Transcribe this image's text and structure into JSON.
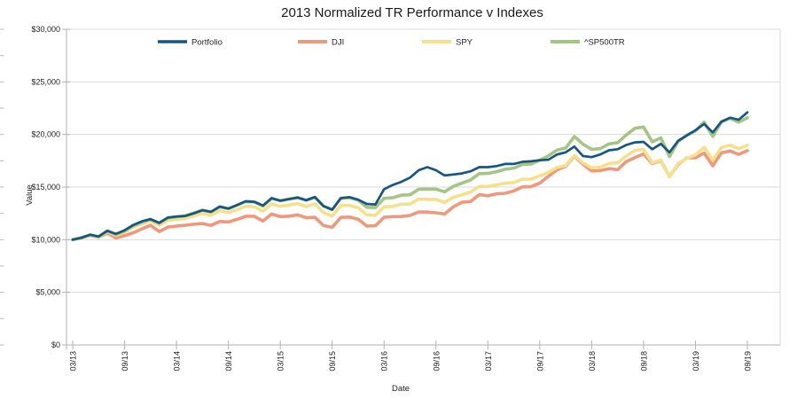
{
  "chart_data": {
    "type": "line",
    "title": "2013 Normalized TR Performance v Indexes",
    "xlabel": "Date",
    "ylabel": "Value",
    "ylim": [
      0,
      30000
    ],
    "grid": "horizontal-major",
    "legend_position": "top-inside-horizontal",
    "y_tick_values": [
      0,
      5000,
      10000,
      15000,
      20000,
      25000,
      30000
    ],
    "y_tick_labels": [
      "$0",
      "$5,000",
      "$10,000",
      "$15,000",
      "$20,000",
      "$25,000",
      "$30,000"
    ],
    "x_tick_labels": [
      "03/13",
      "09/13",
      "03/14",
      "09/14",
      "03/15",
      "09/15",
      "03/16",
      "09/16",
      "03/17",
      "09/17",
      "03/18",
      "09/18",
      "03/19",
      "09/19"
    ],
    "x_tick_month_indices": [
      0,
      6,
      12,
      18,
      24,
      30,
      36,
      42,
      48,
      54,
      60,
      66,
      72,
      78
    ],
    "x_months": [
      "03/13",
      "04/13",
      "05/13",
      "06/13",
      "07/13",
      "08/13",
      "09/13",
      "10/13",
      "11/13",
      "12/13",
      "01/14",
      "02/14",
      "03/14",
      "04/14",
      "05/14",
      "06/14",
      "07/14",
      "08/14",
      "09/14",
      "10/14",
      "11/14",
      "12/14",
      "01/15",
      "02/15",
      "03/15",
      "04/15",
      "05/15",
      "06/15",
      "07/15",
      "08/15",
      "09/15",
      "10/15",
      "11/15",
      "12/15",
      "01/16",
      "02/16",
      "03/16",
      "04/16",
      "05/16",
      "06/16",
      "07/16",
      "08/16",
      "09/16",
      "10/16",
      "11/16",
      "12/16",
      "01/17",
      "02/17",
      "03/17",
      "04/17",
      "05/17",
      "06/17",
      "07/17",
      "08/17",
      "09/17",
      "10/17",
      "11/17",
      "12/17",
      "01/18",
      "02/18",
      "03/18",
      "04/18",
      "05/18",
      "06/18",
      "07/18",
      "08/18",
      "09/18",
      "10/18",
      "11/18",
      "12/18",
      "01/19",
      "02/19",
      "03/19",
      "04/19",
      "05/19",
      "06/19",
      "07/19",
      "08/19",
      "09/19"
    ],
    "series": [
      {
        "name": "Portfolio",
        "color": "#175682",
        "values": [
          10000,
          10180,
          10480,
          10300,
          10850,
          10550,
          10900,
          11400,
          11750,
          11950,
          11600,
          12100,
          12200,
          12250,
          12500,
          12800,
          12650,
          13150,
          12950,
          13300,
          13650,
          13600,
          13250,
          13950,
          13700,
          13850,
          14000,
          13750,
          14050,
          13200,
          12850,
          13950,
          14050,
          13800,
          13400,
          13350,
          14800,
          15200,
          15500,
          15900,
          16600,
          16900,
          16600,
          16100,
          16200,
          16300,
          16500,
          16900,
          16900,
          17000,
          17200,
          17200,
          17400,
          17450,
          17550,
          17600,
          18100,
          18300,
          18850,
          17950,
          17850,
          18100,
          18500,
          18600,
          19000,
          19250,
          19300,
          18600,
          19100,
          18300,
          19400,
          19900,
          20400,
          21000,
          20200,
          21200,
          21600,
          21400,
          22100
        ]
      },
      {
        "name": "DJI",
        "color": "#f0987c",
        "values": [
          10000,
          10180,
          10370,
          10230,
          10630,
          10160,
          10380,
          10660,
          11030,
          11370,
          10770,
          11200,
          11290,
          11370,
          11470,
          11540,
          11360,
          11730,
          11690,
          11930,
          12230,
          12230,
          11770,
          12440,
          12190,
          12240,
          12350,
          12090,
          12130,
          11340,
          11170,
          12120,
          12150,
          11950,
          11300,
          11330,
          12130,
          12190,
          12200,
          12300,
          12640,
          12620,
          12560,
          12440,
          13120,
          13560,
          13630,
          14280,
          14170,
          14360,
          14410,
          14640,
          15020,
          15050,
          15370,
          16030,
          16650,
          16960,
          17940,
          17170,
          16530,
          16570,
          16750,
          16650,
          17430,
          17810,
          18150,
          17230,
          17520,
          16000,
          17150,
          17780,
          17790,
          18240,
          17020,
          18250,
          18430,
          18110,
          18460
        ]
      },
      {
        "name": "SPY",
        "color": "#f5e18c",
        "values": [
          10000,
          10190,
          10400,
          10240,
          10750,
          10410,
          10720,
          11200,
          11510,
          11780,
          11360,
          11850,
          11930,
          12010,
          12260,
          12490,
          12310,
          12770,
          12570,
          12860,
          13180,
          13120,
          12720,
          13410,
          13180,
          13300,
          13430,
          13150,
          13410,
          12570,
          12240,
          13250,
          13260,
          13030,
          12370,
          12310,
          13130,
          13160,
          13370,
          13380,
          13860,
          13840,
          13820,
          13550,
          14020,
          14270,
          14530,
          15070,
          15060,
          15200,
          15370,
          15440,
          15740,
          15760,
          16060,
          16410,
          16880,
          17040,
          18000,
          17300,
          16830,
          16880,
          17240,
          17320,
          17950,
          18500,
          18570,
          17290,
          17590,
          15980,
          17230,
          17740,
          18060,
          18780,
          17540,
          18750,
          18990,
          18650,
          18970
        ]
      },
      {
        "name": "^SP500TR",
        "color": "#a5c585",
        "values": [
          10000,
          10200,
          10430,
          10290,
          10820,
          10490,
          10830,
          11330,
          11660,
          11950,
          11550,
          12070,
          12170,
          12270,
          12550,
          12810,
          12640,
          13130,
          12950,
          13270,
          13620,
          13590,
          13190,
          13930,
          13710,
          13860,
          14020,
          13750,
          14040,
          13190,
          12860,
          13950,
          13980,
          13760,
          13080,
          13050,
          13930,
          13990,
          14230,
          14270,
          14800,
          14810,
          14810,
          14550,
          15070,
          15370,
          15670,
          16280,
          16300,
          16470,
          16690,
          16800,
          17150,
          17190,
          17550,
          17970,
          18510,
          18720,
          19810,
          19070,
          18580,
          18660,
          19100,
          19220,
          19950,
          20590,
          20710,
          19300,
          19680,
          17900,
          19340,
          19950,
          20340,
          21180,
          19820,
          21220,
          21530,
          21170,
          21580
        ]
      }
    ],
    "colors": {
      "gridline": "#d9d9d9",
      "axis": "#b2b2b2",
      "minor_tick": "#bbbbbb",
      "text": "#222222"
    }
  }
}
